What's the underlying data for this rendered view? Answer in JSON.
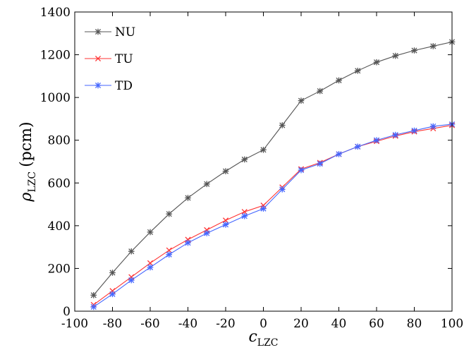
{
  "chart_data": {
    "type": "line",
    "title": "",
    "xlabel": {
      "symbol": "c",
      "subscript": "LZC"
    },
    "ylabel": {
      "symbol": "ρ",
      "subscript": "LZC",
      "unit": "(pcm)"
    },
    "xlim": [
      -100,
      100
    ],
    "ylim": [
      0,
      1400
    ],
    "xticks": [
      -100,
      -80,
      -60,
      -40,
      -20,
      0,
      20,
      40,
      60,
      80,
      100
    ],
    "yticks": [
      0,
      200,
      400,
      600,
      800,
      1000,
      1200,
      1400
    ],
    "grid": false,
    "legend": {
      "placement": "top-left",
      "entries": [
        "NU",
        "TU",
        "TD"
      ]
    },
    "x": [
      -90,
      -80,
      -70,
      -60,
      -50,
      -40,
      -30,
      -20,
      -10,
      0,
      10,
      20,
      30,
      40,
      50,
      60,
      70,
      80,
      90,
      100
    ],
    "series": [
      {
        "name": "NU",
        "color": "#555555",
        "marker": "asterisk",
        "values": [
          75,
          180,
          280,
          370,
          455,
          530,
          595,
          655,
          710,
          755,
          870,
          985,
          1030,
          1080,
          1125,
          1165,
          1195,
          1220,
          1240,
          1260
        ]
      },
      {
        "name": "TU",
        "color": "#ff3333",
        "marker": "x",
        "values": [
          30,
          95,
          160,
          225,
          285,
          335,
          380,
          425,
          465,
          495,
          580,
          665,
          695,
          735,
          770,
          795,
          820,
          840,
          855,
          870
        ]
      },
      {
        "name": "TD",
        "color": "#4466ff",
        "marker": "asterisk",
        "values": [
          20,
          80,
          145,
          205,
          265,
          320,
          365,
          405,
          445,
          480,
          570,
          660,
          690,
          735,
          770,
          800,
          825,
          845,
          865,
          875
        ]
      }
    ]
  }
}
